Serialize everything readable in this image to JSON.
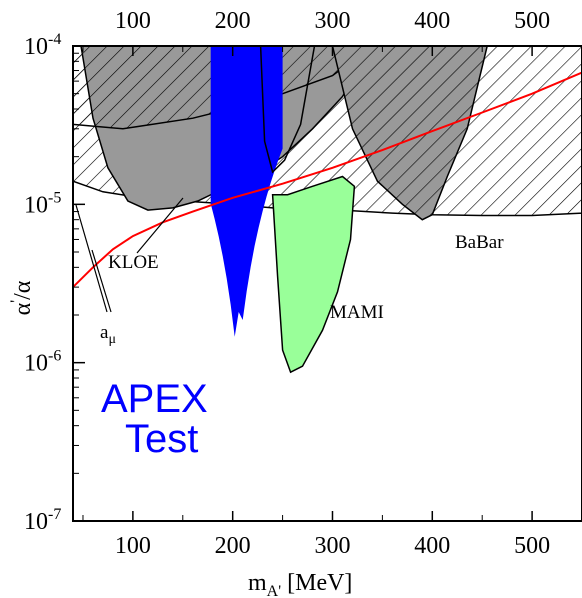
{
  "chart_data": {
    "type": "area",
    "x_axis": {
      "label": "m",
      "label_sub": "A'",
      "unit": "[MeV]",
      "range": [
        40,
        550
      ],
      "ticks": [
        100,
        200,
        300,
        400,
        500
      ],
      "tick_labels": [
        "100",
        "200",
        "300",
        "400",
        "500"
      ],
      "top_ticks_mirrored": true
    },
    "y_axis": {
      "label_base": "α",
      "label_prime": "'",
      "label_rest": "/α",
      "scale": "log",
      "range": [
        1e-07,
        0.0001
      ],
      "ticks": [
        1e-07,
        1e-06,
        1e-05,
        0.0001
      ],
      "tick_labels": [
        {
          "base": "10",
          "exp": "-7"
        },
        {
          "base": "10",
          "exp": "-6"
        },
        {
          "base": "10",
          "exp": "-5"
        },
        {
          "base": "10",
          "exp": "-4"
        }
      ]
    },
    "regions": [
      {
        "name": "KLOE",
        "label": "KLOE",
        "fill": "#999999",
        "hatch": "none",
        "boundary": [
          [
            48,
            0.0001
          ],
          [
            60,
            3.5e-05
          ],
          [
            75,
            1.7e-05
          ],
          [
            95,
            1.05e-05
          ],
          [
            115,
            9.2e-06
          ],
          [
            140,
            9.5e-06
          ],
          [
            165,
            1.05e-05
          ],
          [
            190,
            1.25e-05
          ],
          [
            220,
            1.5e-05
          ],
          [
            250,
            2e-05
          ],
          [
            280,
            3e-05
          ],
          [
            310,
            4.8e-05
          ],
          [
            340,
            0.0001
          ]
        ]
      },
      {
        "name": "BaBar",
        "label": "BaBar",
        "fill": "none",
        "hatch": "diagonal",
        "boundary": [
          [
            40,
            1.4e-05
          ],
          [
            70,
            1.2e-05
          ],
          [
            100,
            1.12e-05
          ],
          [
            150,
            1.05e-05
          ],
          [
            200,
            1e-05
          ],
          [
            240,
            9.5e-06
          ],
          [
            280,
            9.3e-06
          ],
          [
            320,
            9.1e-06
          ],
          [
            360,
            8.8e-06
          ],
          [
            400,
            8.6e-06
          ],
          [
            450,
            8.5e-06
          ],
          [
            500,
            8.5e-06
          ],
          [
            550,
            8.8e-06
          ]
        ]
      },
      {
        "name": "MAMI",
        "label": "MAMI",
        "fill": "#99ff99",
        "hatch": "none",
        "boundary": [
          [
            240,
            1.15e-05
          ],
          [
            245,
            3.5e-06
          ],
          [
            250,
            1.2e-06
          ],
          [
            258,
            8.7e-07
          ],
          [
            270,
            9.5e-07
          ],
          [
            290,
            1.6e-06
          ],
          [
            305,
            2.8e-06
          ],
          [
            318,
            6e-06
          ],
          [
            322,
            1.3e-05
          ],
          [
            310,
            1.5e-05
          ],
          [
            280,
            1.3e-05
          ],
          [
            255,
            1.15e-05
          ]
        ]
      },
      {
        "name": "APEX Test",
        "label_line1": "APEX",
        "label_line2": "Test",
        "fill": "#0000ff",
        "hatch": "none",
        "x_range": [
          178,
          250
        ],
        "min_y": 9.5e-07
      },
      {
        "name": "gray-hatched",
        "fill": "#999999",
        "hatch": "diagonal",
        "boundary": [
          [
            300,
            0.0001
          ],
          [
            320,
            3e-05
          ],
          [
            345,
            1.4e-05
          ],
          [
            370,
            1e-05
          ],
          [
            390,
            8e-06
          ],
          [
            400,
            8.6e-06
          ],
          [
            415,
            1.5e-05
          ],
          [
            435,
            3e-05
          ],
          [
            455,
            0.0001
          ]
        ]
      }
    ],
    "curves": [
      {
        "name": "a_mu",
        "label": "a",
        "label_sub": "μ",
        "color": "#ff0000",
        "x": [
          40,
          60,
          80,
          100,
          130,
          160,
          200,
          250,
          300,
          350,
          400,
          450,
          500,
          550
        ],
        "y": [
          3e-06,
          4e-06,
          5.2e-06,
          6.3e-06,
          7.7e-06,
          9e-06,
          1.1e-05,
          1.35e-05,
          1.7e-05,
          2.2e-05,
          2.9e-05,
          3.8e-05,
          5e-05,
          6.8e-05
        ]
      }
    ]
  }
}
